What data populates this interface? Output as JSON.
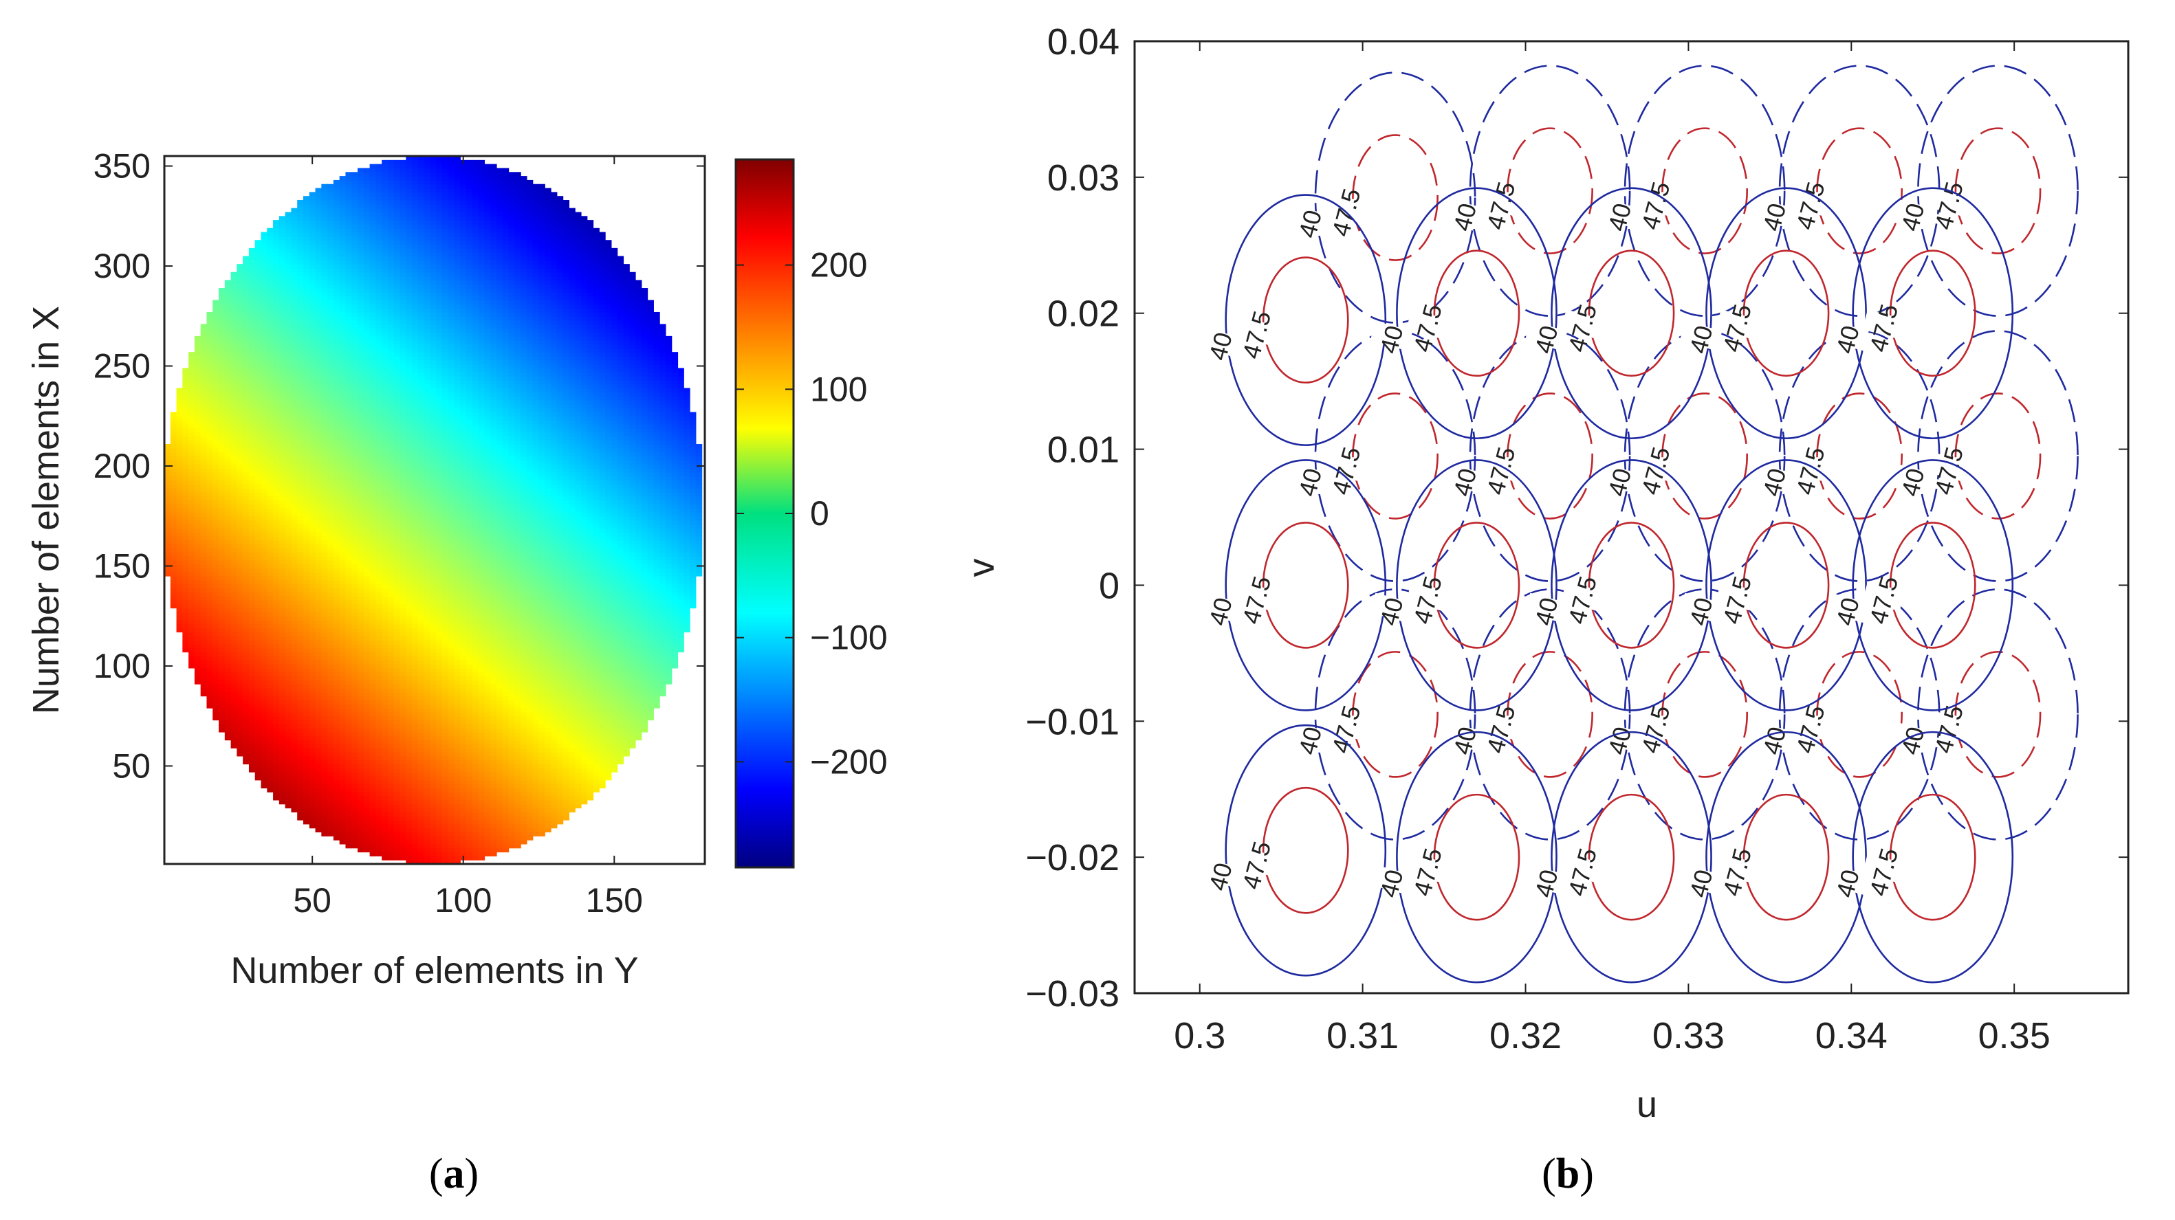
{
  "chart_data": [
    {
      "panel": "a",
      "type": "heatmap",
      "description_kind": "elliptical array phase map",
      "xlabel": "Number of elements in Y",
      "ylabel": "Number of elements in X",
      "xlim": [
        1,
        180
      ],
      "ylim": [
        1,
        355
      ],
      "xticks": [
        50,
        100,
        150
      ],
      "yticks": [
        50,
        100,
        150,
        200,
        250,
        300,
        350
      ],
      "ellipse": {
        "center_x": 90,
        "center_y": 178,
        "radius_x": 89.5,
        "radius_y": 177
      },
      "field": {
        "value_at_center": 0,
        "gradient_per_x": -1.55,
        "gradient_per_y": -1.2,
        "phase_wrap": 360
      },
      "colorbar": {
        "ticks": [
          -200,
          -100,
          0,
          100,
          200
        ],
        "range": [
          -285,
          285
        ],
        "colormap": "jet"
      }
    },
    {
      "panel": "b",
      "type": "contour",
      "xlabel": "u",
      "ylabel": "v",
      "xlim": [
        0.296,
        0.357
      ],
      "ylim": [
        -0.03,
        0.04
      ],
      "xticks": [
        0.3,
        0.31,
        0.32,
        0.33,
        0.34,
        0.35
      ],
      "yticks": [
        -0.03,
        -0.02,
        -0.01,
        0,
        0.01,
        0.02,
        0.03,
        0.04
      ],
      "xtick_labels": [
        "0.3",
        "0.31",
        "0.32",
        "0.33",
        "0.34",
        "0.35"
      ],
      "ytick_labels": [
        "−0.03",
        "−0.02",
        "−0.01",
        "0",
        "0.01",
        "0.02",
        "0.03",
        "0.04"
      ],
      "contour_levels": [
        "40",
        "47.5"
      ],
      "level_colors": {
        "40": "#1f2aa0",
        "47.5": "#c0272d"
      },
      "beam_centers_solid": [
        [
          0.3065,
          0.0195
        ],
        [
          0.317,
          0.02
        ],
        [
          0.3265,
          0.02
        ],
        [
          0.336,
          0.02
        ],
        [
          0.345,
          0.02
        ],
        [
          0.3065,
          0.0
        ],
        [
          0.317,
          0.0
        ],
        [
          0.3265,
          0.0
        ],
        [
          0.336,
          0.0
        ],
        [
          0.345,
          0.0
        ],
        [
          0.3065,
          -0.0195
        ],
        [
          0.317,
          -0.02
        ],
        [
          0.3265,
          -0.02
        ],
        [
          0.336,
          -0.02
        ],
        [
          0.345,
          -0.02
        ]
      ],
      "beam_centers_dashed": [
        [
          0.312,
          0.0285
        ],
        [
          0.3215,
          0.029
        ],
        [
          0.331,
          0.029
        ],
        [
          0.3405,
          0.029
        ],
        [
          0.349,
          0.029
        ],
        [
          0.312,
          0.0095
        ],
        [
          0.3215,
          0.0095
        ],
        [
          0.331,
          0.0095
        ],
        [
          0.3405,
          0.0095
        ],
        [
          0.349,
          0.0095
        ],
        [
          0.312,
          -0.0095
        ],
        [
          0.3215,
          -0.0095
        ],
        [
          0.331,
          -0.0095
        ],
        [
          0.3405,
          -0.0095
        ],
        [
          0.349,
          -0.0095
        ]
      ],
      "contour_radii": {
        "40": [
          0.0049,
          0.0092
        ],
        "47.5": [
          0.0026,
          0.0046
        ]
      }
    }
  ],
  "panel_labels": {
    "a": {
      "open": "(",
      "letter": "a",
      "close": ")"
    },
    "b": {
      "open": "(",
      "letter": "b",
      "close": ")"
    }
  }
}
